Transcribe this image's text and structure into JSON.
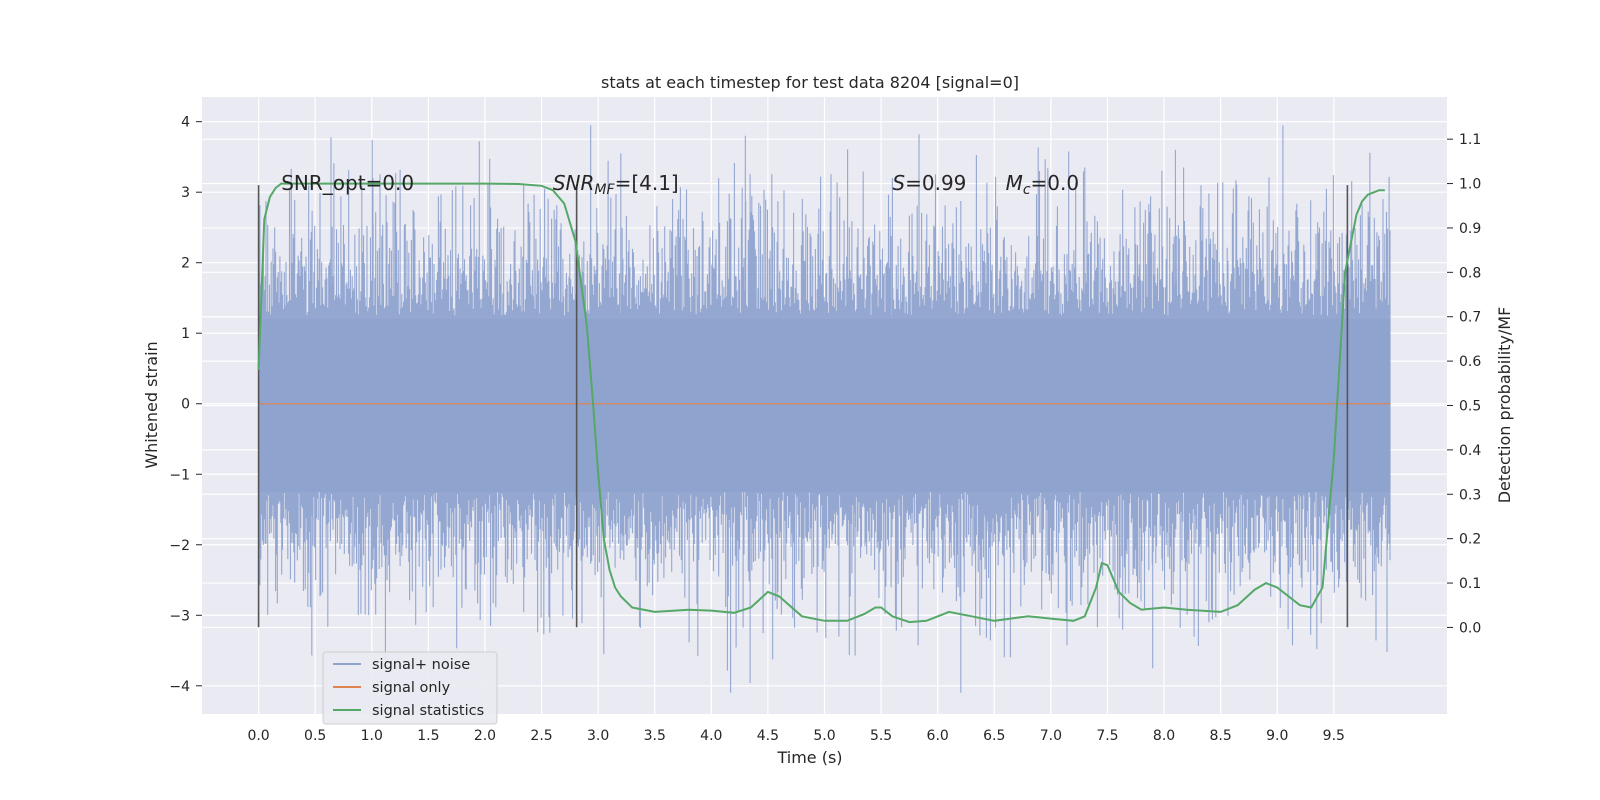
{
  "chart_data": {
    "type": "line",
    "title": "stats at each timestep for test data 8204 [signal=0]",
    "xlabel": "Time (s)",
    "ylabel": "Whitened strain",
    "y2label": "Detection probability/MF",
    "xlim": [
      -0.5,
      10.5
    ],
    "ylim": [
      -4.4,
      4.35
    ],
    "y2lim": [
      -0.195,
      1.195
    ],
    "x_ticks": [
      0.0,
      0.5,
      1.0,
      1.5,
      2.0,
      2.5,
      3.0,
      3.5,
      4.0,
      4.5,
      5.0,
      5.5,
      6.0,
      6.5,
      7.0,
      7.5,
      8.0,
      8.5,
      9.0,
      9.5
    ],
    "y_ticks": [
      -4,
      -3,
      -2,
      -1,
      0,
      1,
      2,
      3,
      4
    ],
    "y2_ticks": [
      0.0,
      0.1,
      0.2,
      0.3,
      0.4,
      0.5,
      0.6,
      0.7,
      0.8,
      0.9,
      1.0,
      1.1
    ],
    "grid": true,
    "legend_position": "lower-left",
    "annotations": [
      {
        "text": "SNR_opt=0.0",
        "x": 0.2,
        "y": 3.1
      },
      {
        "text_main": "SNR",
        "text_sub": "MF",
        "text_rest": "=[4.1]",
        "x": 2.6,
        "y": 3.1
      },
      {
        "text_main": "S",
        "text_sub": "",
        "text_rest": "=0.99",
        "x": 5.6,
        "y": 3.1
      },
      {
        "text_main": "M",
        "text_sub": "c",
        "text_rest": "=0.0",
        "x": 6.6,
        "y": 3.1
      }
    ],
    "markers": {
      "x": [
        0.0,
        2.81,
        9.62
      ],
      "ymin": -3.17,
      "ymax": 3.1
    },
    "series": [
      {
        "name": "signal+ noise",
        "color": "#8fa3cf",
        "axis": "left",
        "x_range": [
          0.0,
          10.0
        ],
        "description_values": {
          "approx_std": 1.0,
          "approx_min": -4.1,
          "approx_max": 3.95
        },
        "peaks": [
          {
            "x": 0.64,
            "y": 3.78
          },
          {
            "x": 1.01,
            "y": 3.2
          },
          {
            "x": 1.95,
            "y": 3.72
          },
          {
            "x": 3.2,
            "y": 3.55
          },
          {
            "x": 4.3,
            "y": 3.8
          },
          {
            "x": 5.6,
            "y": 3.2
          },
          {
            "x": 6.9,
            "y": 3.3
          },
          {
            "x": 7.3,
            "y": 3.35
          },
          {
            "x": 8.1,
            "y": 3.6
          },
          {
            "x": 9.05,
            "y": 3.95
          },
          {
            "x": 0.47,
            "y": -3.57
          },
          {
            "x": 1.12,
            "y": -3.7
          },
          {
            "x": 2.52,
            "y": -3.27
          },
          {
            "x": 3.05,
            "y": -3.55
          },
          {
            "x": 4.17,
            "y": -4.1
          },
          {
            "x": 5.27,
            "y": -3.57
          },
          {
            "x": 6.43,
            "y": -3.32
          },
          {
            "x": 7.9,
            "y": -3.75
          },
          {
            "x": 9.35,
            "y": -3.48
          },
          {
            "x": 9.97,
            "y": -3.52
          }
        ]
      },
      {
        "name": "signal only",
        "color": "#dd8452",
        "axis": "left",
        "x": [
          0.0,
          10.0
        ],
        "values": [
          0.0,
          0.0
        ]
      },
      {
        "name": "signal statistics",
        "color": "#55a868",
        "axis": "right",
        "x": [
          0.0,
          0.05,
          0.1,
          0.15,
          0.2,
          0.3,
          0.5,
          1.0,
          1.5,
          2.0,
          2.3,
          2.5,
          2.6,
          2.7,
          2.8,
          2.9,
          2.95,
          3.0,
          3.05,
          3.1,
          3.15,
          3.2,
          3.3,
          3.5,
          3.8,
          4.0,
          4.2,
          4.35,
          4.5,
          4.6,
          4.8,
          5.0,
          5.2,
          5.35,
          5.45,
          5.5,
          5.6,
          5.75,
          5.9,
          6.1,
          6.3,
          6.5,
          6.8,
          7.0,
          7.2,
          7.3,
          7.4,
          7.45,
          7.5,
          7.6,
          7.7,
          7.8,
          8.0,
          8.2,
          8.5,
          8.65,
          8.8,
          8.9,
          9.0,
          9.2,
          9.3,
          9.4,
          9.5,
          9.6,
          9.7,
          9.75,
          9.8,
          9.9,
          9.95
        ],
        "values": [
          0.58,
          0.92,
          0.97,
          0.99,
          1.0,
          1.0,
          1.0,
          1.0,
          1.0,
          1.0,
          0.999,
          0.995,
          0.985,
          0.955,
          0.87,
          0.68,
          0.52,
          0.35,
          0.2,
          0.13,
          0.09,
          0.07,
          0.045,
          0.035,
          0.04,
          0.038,
          0.033,
          0.045,
          0.08,
          0.07,
          0.025,
          0.015,
          0.015,
          0.03,
          0.045,
          0.045,
          0.025,
          0.012,
          0.015,
          0.035,
          0.025,
          0.015,
          0.025,
          0.02,
          0.015,
          0.025,
          0.09,
          0.145,
          0.14,
          0.08,
          0.055,
          0.04,
          0.045,
          0.04,
          0.035,
          0.05,
          0.085,
          0.1,
          0.09,
          0.05,
          0.045,
          0.09,
          0.38,
          0.8,
          0.93,
          0.96,
          0.975,
          0.985,
          0.985
        ]
      }
    ]
  }
}
